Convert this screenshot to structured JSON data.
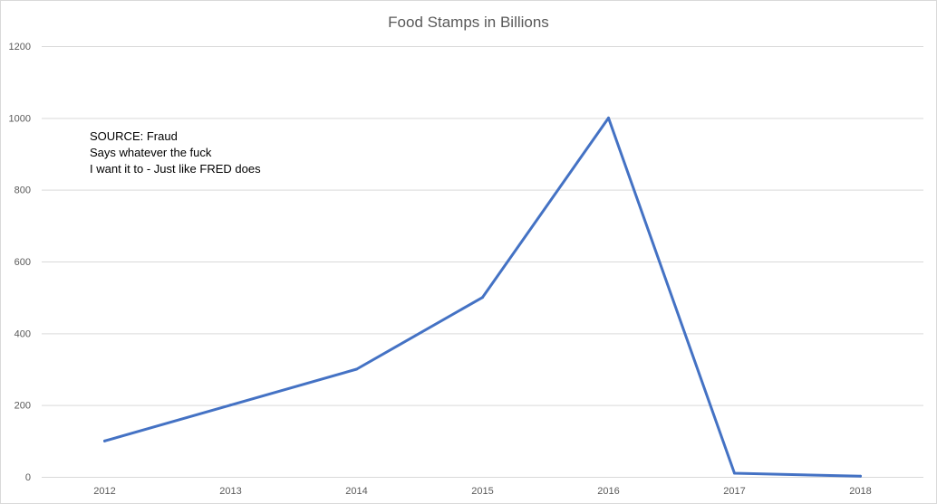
{
  "chart_data": {
    "type": "line",
    "title": "Food Stamps in Billions",
    "xlabel": "",
    "ylabel": "",
    "categories": [
      "2012",
      "2013",
      "2014",
      "2015",
      "2016",
      "2017",
      "2018"
    ],
    "series": [
      {
        "values": [
          100,
          200,
          300,
          500,
          1000,
          10,
          2
        ]
      }
    ],
    "ylim": [
      0,
      1200
    ],
    "yticks": [
      0,
      200,
      400,
      600,
      800,
      1000,
      1200
    ],
    "grid": true,
    "legend": "none",
    "annotations": [
      "SOURCE: Fraud",
      "Says whatever the fuck",
      "I want it to - Just like FRED does"
    ]
  },
  "colors": {
    "series": "#4472c4",
    "grid": "#d9d9d9",
    "text": "#595959"
  }
}
